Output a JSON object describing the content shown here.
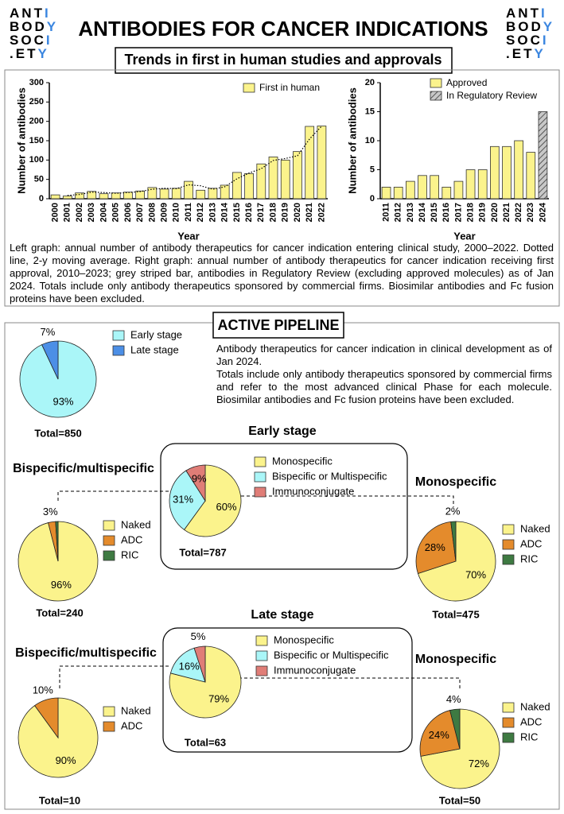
{
  "logo": {
    "lines": [
      "ANTI",
      "BODY",
      "SOCI",
      ".ETY"
    ]
  },
  "title": "ANTIBODIES FOR CANCER INDICATIONS",
  "trends": {
    "heading": "Trends in first in human studies and approvals",
    "caption": "Left graph: annual number of antibody therapeutics for cancer indication entering clinical study, 2000–2022. Dotted line, 2-y moving average. Right graph: annual number of antibody therapeutics for cancer indication receiving first approval, 2010–2023; grey striped bar, antibodies in Regulatory Review (excluding approved molecules) as of Jan 2024. Totals include only antibody therapeutics sponsored by commercial firms. Biosimilar antibodies and Fc fusion proteins have been excluded."
  },
  "pipeline": {
    "heading": "ACTIVE PIPELINE",
    "description": [
      "Antibody therapeutics for cancer indication in clinical development as of Jan 2024.",
      "Totals include only antibody therapeutics sponsored by commercial firms and refer to the most advanced clinical Phase for each molecule. Biosimilar antibodies and Fc fusion proteins have been excluded."
    ]
  },
  "chart_data": [
    {
      "type": "bar",
      "x_label": "Year",
      "y_label": "Number of antibodies",
      "categories": [
        "2000",
        "2001",
        "2002",
        "2003",
        "2004",
        "2005",
        "2006",
        "2007",
        "2008",
        "2009",
        "2010",
        "2011",
        "2012",
        "2013",
        "2014",
        "2015",
        "2016",
        "2017",
        "2018",
        "2019",
        "2020",
        "2021",
        "2022"
      ],
      "series": [
        {
          "name": "First in human",
          "color": "#fbf38c",
          "values": [
            10,
            7,
            15,
            19,
            13,
            15,
            17,
            20,
            29,
            25,
            27,
            45,
            22,
            27,
            35,
            68,
            65,
            90,
            108,
            100,
            122,
            187,
            188
          ]
        }
      ],
      "moving_average": [
        null,
        8.5,
        11,
        17,
        16,
        14,
        16,
        18.5,
        24.5,
        27,
        26,
        36,
        33.5,
        24.5,
        31,
        51.5,
        66.5,
        77.5,
        99,
        104,
        111,
        154.5,
        187.5
      ],
      "ylim": [
        0,
        300
      ],
      "yticks": [
        0,
        50,
        100,
        150,
        200,
        250,
        300
      ]
    },
    {
      "type": "bar",
      "x_label": "Year",
      "y_label": "Number of antibodies",
      "categories": [
        "2011",
        "2012",
        "2013",
        "2014",
        "2015",
        "2016",
        "2017",
        "2018",
        "2019",
        "2020",
        "2021",
        "2022",
        "2023",
        "2024"
      ],
      "series": [
        {
          "name": "Approved",
          "color": "#fbf38c",
          "values": [
            2,
            2,
            3,
            4,
            4,
            2,
            3,
            5,
            5,
            9,
            9,
            10,
            8,
            null
          ]
        },
        {
          "name": "In Regulatory Review",
          "color": "#9a9a9a",
          "hatch": true,
          "values": [
            null,
            null,
            null,
            null,
            null,
            null,
            null,
            null,
            null,
            null,
            null,
            null,
            null,
            15
          ]
        }
      ],
      "ylim": [
        0,
        20
      ],
      "yticks": [
        0,
        5,
        10,
        15,
        20
      ]
    },
    {
      "type": "pie",
      "total": "Total=850",
      "categories": [
        "Early stage",
        "Late stage"
      ],
      "colors": [
        "#aaf6f8",
        "#4c8fe6"
      ],
      "values": [
        93,
        7
      ],
      "value_labels": [
        "93%",
        "7%"
      ]
    },
    {
      "type": "pie",
      "title": "Early stage",
      "total": "Total=787",
      "categories": [
        "Monospecific",
        "Bispecific or Multispecific",
        "Immunoconjugate"
      ],
      "colors": [
        "#fbf38c",
        "#aaf6f8",
        "#e07d77"
      ],
      "values": [
        60,
        31,
        9
      ],
      "value_labels": [
        "60%",
        "31%",
        "9%"
      ]
    },
    {
      "type": "pie",
      "title": "Bispecific/multispecific",
      "total": "Total=240",
      "categories": [
        "Naked",
        "ADC",
        "RIC"
      ],
      "colors": [
        "#fbf38c",
        "#e48b2c",
        "#3e7a42"
      ],
      "values": [
        96,
        3,
        1
      ],
      "value_labels": [
        "96%",
        "3%",
        null
      ]
    },
    {
      "type": "pie",
      "title": "Monospecific",
      "total": "Total=475",
      "categories": [
        "Naked",
        "ADC",
        "RIC"
      ],
      "colors": [
        "#fbf38c",
        "#e48b2c",
        "#3e7a42"
      ],
      "values": [
        70,
        28,
        2
      ],
      "value_labels": [
        "70%",
        "28%",
        "2%"
      ]
    },
    {
      "type": "pie",
      "title": "Late stage",
      "total": "Total=63",
      "categories": [
        "Monospecific",
        "Bispecific or Multispecific",
        "Immunoconjugate"
      ],
      "colors": [
        "#fbf38c",
        "#aaf6f8",
        "#e07d77"
      ],
      "values": [
        79,
        16,
        5
      ],
      "value_labels": [
        "79%",
        "16%",
        "5%"
      ]
    },
    {
      "type": "pie",
      "title": "Bispecific/multispecific",
      "total": "Total=10",
      "categories": [
        "Naked",
        "ADC"
      ],
      "colors": [
        "#fbf38c",
        "#e48b2c"
      ],
      "values": [
        90,
        10
      ],
      "value_labels": [
        "90%",
        "10%"
      ]
    },
    {
      "type": "pie",
      "title": "Monospecific",
      "total": "Total=50",
      "categories": [
        "Naked",
        "ADC",
        "RIC"
      ],
      "colors": [
        "#fbf38c",
        "#e48b2c",
        "#3e7a42"
      ],
      "values": [
        72,
        24,
        4
      ],
      "value_labels": [
        "72%",
        "24%",
        "4%"
      ]
    }
  ]
}
